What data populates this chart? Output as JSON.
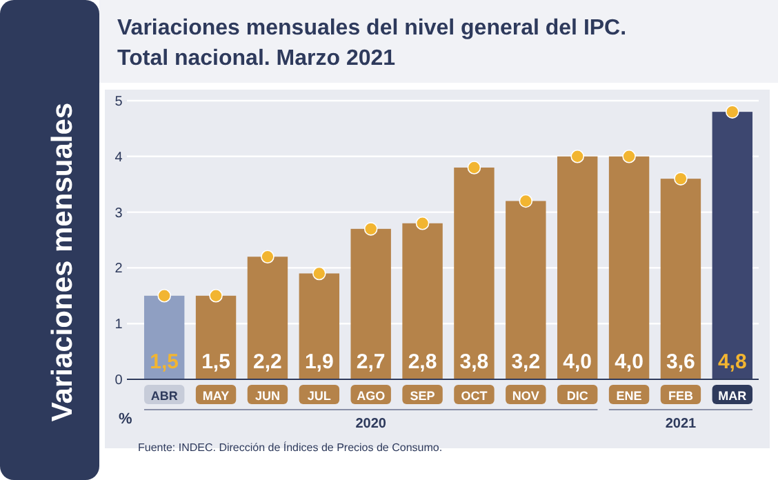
{
  "chart_data": {
    "type": "bar",
    "title": "Variaciones mensuales del nivel general del IPC.",
    "subtitle": "Total nacional. Marzo 2021",
    "ylabel": "Variaciones mensuales",
    "categories": [
      "ABR",
      "MAY",
      "JUN",
      "JUL",
      "AGO",
      "SEP",
      "OCT",
      "NOV",
      "DIC",
      "ENE",
      "FEB",
      "MAR"
    ],
    "series": [
      {
        "values": [
          1.5,
          1.5,
          2.2,
          1.9,
          2.7,
          2.8,
          3.8,
          3.2,
          4.0,
          4.0,
          3.6,
          4.8
        ],
        "value_labels": [
          "1,5",
          "1,5",
          "2,2",
          "1,9",
          "2,7",
          "2,8",
          "3,8",
          "3,2",
          "4,0",
          "4,0",
          "3,6",
          "4,8"
        ],
        "colors": [
          "#8f9fc2",
          "#b5834a",
          "#b5834a",
          "#b5834a",
          "#b5834a",
          "#b5834a",
          "#b5834a",
          "#b5834a",
          "#b5834a",
          "#b5834a",
          "#b5834a",
          "#3d4770"
        ]
      },
      {
        "type": "scatter",
        "x": [
          "ABR",
          "MAY",
          "JUN",
          "JUL",
          "AGO",
          "SEP",
          "OCT",
          "NOV",
          "DIC",
          "ENE",
          "FEB",
          "MAR"
        ],
        "values": [
          1.5,
          1.5,
          2.2,
          1.9,
          2.7,
          2.8,
          3.8,
          3.2,
          4.0,
          4.0,
          3.6,
          4.8
        ],
        "color": "#f2b531",
        "marker": "circle"
      }
    ],
    "ylim": [
      0,
      5
    ],
    "yticks": [
      0,
      1,
      2,
      3,
      4,
      5
    ],
    "grid": "y",
    "annotations": [
      "%",
      "2020",
      "2021",
      "Fuente: INDEC. Dirección de Índices de Precios de Consumo."
    ]
  }
}
